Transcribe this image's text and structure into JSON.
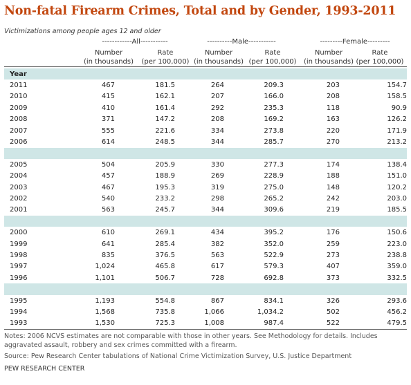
{
  "title": "Non-fatal Firearm Crimes, Total and by Gender, 1993-2011",
  "subtitle": "Victimizations among people ages 12 and older",
  "groups": {
    "all": "------------All-----------",
    "male": "----------Male-----------",
    "female": "---------Female---------"
  },
  "col_headers": {
    "number": [
      "Number",
      "(in thousands)"
    ],
    "rate": [
      "Rate",
      "(per 100,000)"
    ]
  },
  "year_label": "Year",
  "rows": [
    [
      "2011",
      "467",
      "181.5",
      "264",
      "209.3",
      "203",
      "154.7"
    ],
    [
      "2010",
      "415",
      "162.1",
      "207",
      "166.0",
      "208",
      "158.5"
    ],
    [
      "2009",
      "410",
      "161.4",
      "292",
      "235.3",
      "118",
      "90.9"
    ],
    [
      "2008",
      "371",
      "147.2",
      "208",
      "169.2",
      "163",
      "126.2"
    ],
    [
      "2007",
      "555",
      "221.6",
      "334",
      "273.8",
      "220",
      "171.9"
    ],
    [
      "2006",
      "614",
      "248.5",
      "344",
      "285.7",
      "270",
      "213.2"
    ],
    [
      "2005",
      "504",
      "205.9",
      "330",
      "277.3",
      "174",
      "138.4"
    ],
    [
      "2004",
      "457",
      "188.9",
      "269",
      "228.9",
      "188",
      "151.0"
    ],
    [
      "2003",
      "467",
      "195.3",
      "319",
      "275.0",
      "148",
      "120.2"
    ],
    [
      "2002",
      "540",
      "233.2",
      "298",
      "265.2",
      "242",
      "203.0"
    ],
    [
      "2001",
      "563",
      "245.7",
      "344",
      "309.6",
      "219",
      "185.5"
    ],
    [
      "2000",
      "610",
      "269.1",
      "434",
      "395.2",
      "176",
      "150.6"
    ],
    [
      "1999",
      "641",
      "285.4",
      "382",
      "352.0",
      "259",
      "223.0"
    ],
    [
      "1998",
      "835",
      "376.5",
      "563",
      "522.9",
      "273",
      "238.8"
    ],
    [
      "1997",
      "1,024",
      "465.8",
      "617",
      "579.3",
      "407",
      "359.0"
    ],
    [
      "1996",
      "1,101",
      "506.7",
      "728",
      "692.8",
      "373",
      "332.5"
    ],
    [
      "1995",
      "1,193",
      "554.8",
      "867",
      "834.1",
      "326",
      "293.6"
    ],
    [
      "1994",
      "1,568",
      "735.8",
      "1,066",
      "1,034.2",
      "502",
      "456.2"
    ],
    [
      "1993",
      "1,530",
      "725.3",
      "1,008",
      "987.4",
      "522",
      "479.5"
    ]
  ],
  "notes": "Notes: 2006 NCVS estimates are not comparable with those in other years. See Methodology for details. Includes aggravated assault, robbery and sex crimes committed with a firearm.",
  "source": "Source: Pew Research Center tabulations of National Crime Victimization Survey, U.S. Justice Department",
  "credit": "PEW RESEARCH CENTER",
  "colors": {
    "title": "#c2470f",
    "band": "#cfe6e6"
  }
}
